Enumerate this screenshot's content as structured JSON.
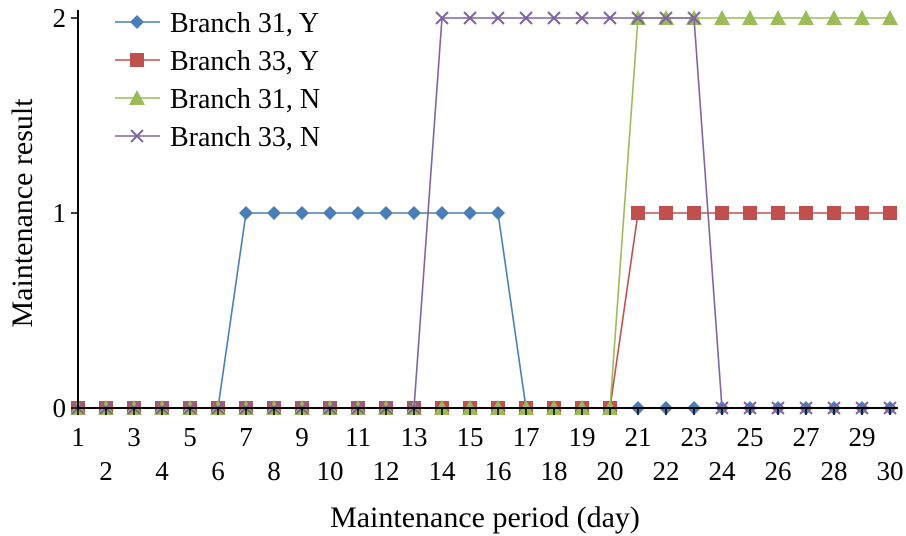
{
  "chart_data": {
    "type": "line",
    "xlabel": "Maintenance period (day)",
    "ylabel": "Maintenance result",
    "x": [
      1,
      2,
      3,
      4,
      5,
      6,
      7,
      8,
      9,
      10,
      11,
      12,
      13,
      14,
      15,
      16,
      17,
      18,
      19,
      20,
      21,
      22,
      23,
      24,
      25,
      26,
      27,
      28,
      29,
      30
    ],
    "xlim": [
      1,
      30
    ],
    "ylim": [
      0,
      2
    ],
    "yticks": [
      0,
      1,
      2
    ],
    "grid": false,
    "legend_position": "top-left",
    "series": [
      {
        "name": "Branch 31, Y",
        "color": "#4a7eb7",
        "marker": "diamond",
        "values": [
          0,
          0,
          0,
          0,
          0,
          0,
          1,
          1,
          1,
          1,
          1,
          1,
          1,
          1,
          1,
          1,
          0,
          0,
          0,
          0,
          0,
          0,
          0,
          0,
          0,
          0,
          0,
          0,
          0,
          0
        ]
      },
      {
        "name": "Branch 33, Y",
        "color": "#c0504d",
        "marker": "square",
        "values": [
          0,
          0,
          0,
          0,
          0,
          0,
          0,
          0,
          0,
          0,
          0,
          0,
          0,
          0,
          0,
          0,
          0,
          0,
          0,
          0,
          1,
          1,
          1,
          1,
          1,
          1,
          1,
          1,
          1,
          1
        ]
      },
      {
        "name": "Branch 31, N",
        "color": "#9bbb59",
        "marker": "triangle",
        "values": [
          0,
          0,
          0,
          0,
          0,
          0,
          0,
          0,
          0,
          0,
          0,
          0,
          0,
          0,
          0,
          0,
          0,
          0,
          0,
          0,
          2,
          2,
          2,
          2,
          2,
          2,
          2,
          2,
          2,
          2
        ]
      },
      {
        "name": "Branch 33, N",
        "color": "#8064a2",
        "marker": "x",
        "values": [
          0,
          0,
          0,
          0,
          0,
          0,
          0,
          0,
          0,
          0,
          0,
          0,
          0,
          2,
          2,
          2,
          2,
          2,
          2,
          2,
          2,
          2,
          2,
          0,
          0,
          0,
          0,
          0,
          0,
          0
        ]
      }
    ]
  }
}
